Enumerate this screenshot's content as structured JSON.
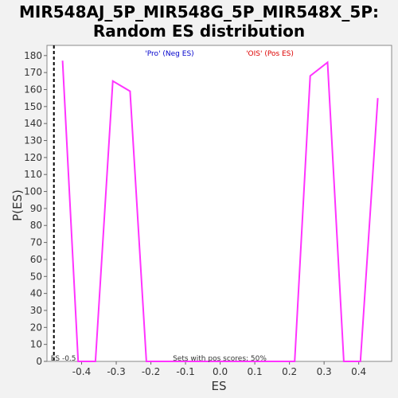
{
  "chart_data": {
    "type": "line",
    "title_line1": "MIR548AJ_5P_MIR548G_5P_MIR548X_5P:",
    "title_line2": "Random ES distribution",
    "xlabel": "ES",
    "ylabel": "P(ES)",
    "xlim": [
      -0.5,
      0.495
    ],
    "ylim": [
      0,
      186
    ],
    "x_ticks": [
      -0.4,
      -0.3,
      -0.2,
      -0.1,
      0.0,
      0.1,
      0.2,
      0.3,
      0.4
    ],
    "x_tick_labels": [
      "-0.4",
      "-0.3",
      "-0.2",
      "-0.1",
      "0.0",
      "0.1",
      "0.2",
      "0.3",
      "0.4"
    ],
    "y_ticks": [
      0,
      10,
      20,
      30,
      40,
      50,
      60,
      70,
      80,
      90,
      100,
      110,
      120,
      130,
      140,
      150,
      160,
      170,
      180
    ],
    "y_tick_labels": [
      "0",
      "10",
      "20",
      "30",
      "40",
      "50",
      "60",
      "70",
      "80",
      "90",
      "100",
      "110",
      "120",
      "130",
      "140",
      "150",
      "160",
      "170",
      "180"
    ],
    "series": [
      {
        "color": "#ff33ff",
        "x": [
          -0.455,
          -0.41,
          -0.36,
          -0.31,
          -0.26,
          -0.213,
          0.215,
          0.26,
          0.31,
          0.357,
          0.405,
          0.455
        ],
        "y": [
          177,
          0,
          0,
          165,
          159,
          0,
          0,
          168,
          176,
          0,
          0,
          155
        ]
      }
    ],
    "reference_line": {
      "x": -0.48,
      "style": "dashed",
      "color": "#000000",
      "label": "ES -0.5"
    },
    "annotations": {
      "neg_label": "'Pro' (Neg ES)",
      "neg_color": "#0000cc",
      "pos_label": "'OIS' (Pos ES)",
      "pos_color": "#dd0000",
      "pos_scores": "Sets with pos scores: 50%"
    },
    "grid": false,
    "legend": "none"
  }
}
